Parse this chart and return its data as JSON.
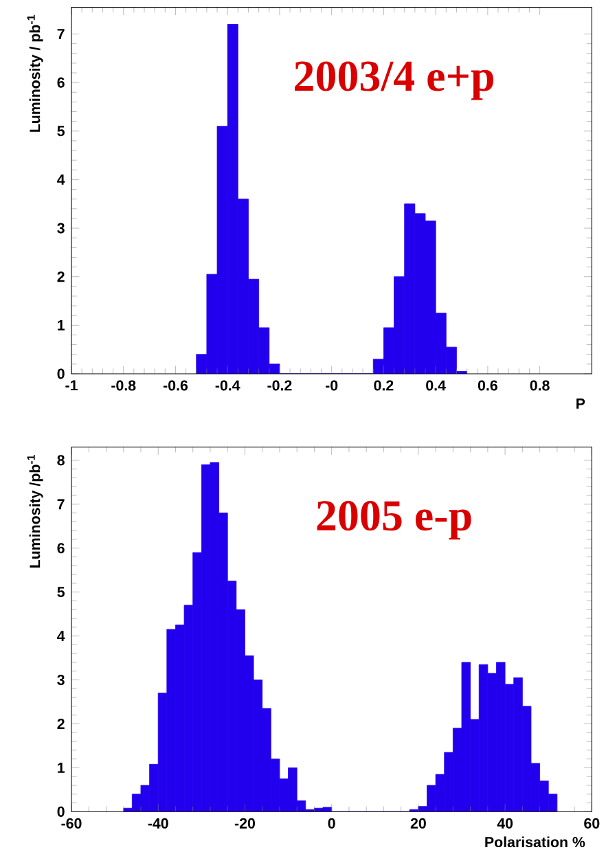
{
  "chart_data": [
    {
      "type": "histogram",
      "ylabel": "Luminosity  / pb$^{-1}$",
      "xlabel": "P",
      "annotations": [
        "2003/4 e+p"
      ],
      "color": "#2200ee",
      "bins": [
        -0.52,
        -0.48,
        -0.44,
        -0.4,
        -0.36,
        -0.32,
        -0.28,
        -0.24,
        -0.2,
        -0.16,
        -0.12,
        -0.08,
        -0.04,
        0,
        0.04,
        0.08,
        0.12,
        0.16,
        0.2,
        0.24,
        0.28,
        0.32,
        0.36,
        0.4,
        0.44,
        0.48,
        0.52
      ],
      "values": [
        0.4,
        2.05,
        5.1,
        7.2,
        3.6,
        1.95,
        0.95,
        0.2,
        0,
        0,
        0,
        0,
        0,
        0,
        0,
        0,
        0,
        0.3,
        0.95,
        2.0,
        3.5,
        3.3,
        3.15,
        1.25,
        0.55,
        0.05
      ],
      "xlim": [
        -1,
        1
      ],
      "ylim": [
        0,
        7.55
      ],
      "xticks": [
        -1,
        -0.8,
        -0.6,
        -0.4,
        -0.2,
        {
          "value": 0,
          "label": "-0"
        },
        0.2,
        0.4,
        0.6,
        0.8
      ],
      "yticks": [
        0,
        1,
        2,
        3,
        4,
        5,
        6,
        7
      ],
      "grid": false
    },
    {
      "type": "histogram",
      "ylabel": "Luminosity /pb$^{-1}$",
      "xlabel": "Polarisation %",
      "annotations": [
        "2005 e-p"
      ],
      "color": "#2200ee",
      "bins": [
        -48,
        -46,
        -44,
        -42,
        -40,
        -38,
        -36,
        -34,
        -32,
        -30,
        -28,
        -26,
        -24,
        -22,
        -20,
        -18,
        -16,
        -14,
        -12,
        -10,
        -8,
        -6,
        -4,
        -2,
        0,
        2,
        4,
        6,
        8,
        10,
        12,
        14,
        16,
        18,
        20,
        22,
        24,
        26,
        28,
        30,
        32,
        34,
        36,
        38,
        40,
        42,
        44,
        46,
        48,
        50,
        52
      ],
      "values": [
        0.08,
        0.4,
        0.6,
        1.08,
        2.7,
        4.15,
        4.25,
        4.7,
        5.9,
        7.9,
        7.95,
        6.8,
        5.25,
        4.6,
        3.55,
        3.0,
        2.35,
        1.2,
        0.75,
        1.0,
        0.25,
        0.05,
        0.08,
        0.1,
        0,
        0,
        0,
        0,
        0,
        0,
        0,
        0,
        0,
        0.05,
        0.12,
        0.6,
        0.85,
        1.35,
        1.9,
        3.4,
        2.1,
        3.35,
        3.15,
        3.4,
        2.9,
        3.05,
        2.4,
        1.1,
        0.7,
        0.4
      ],
      "xlim": [
        -60,
        60
      ],
      "ylim": [
        0,
        8.3
      ],
      "xticks": [
        -60,
        -40,
        -20,
        0,
        20,
        40,
        60
      ],
      "yticks": [
        0,
        1,
        2,
        3,
        4,
        5,
        6,
        7,
        8
      ],
      "grid": false
    }
  ]
}
